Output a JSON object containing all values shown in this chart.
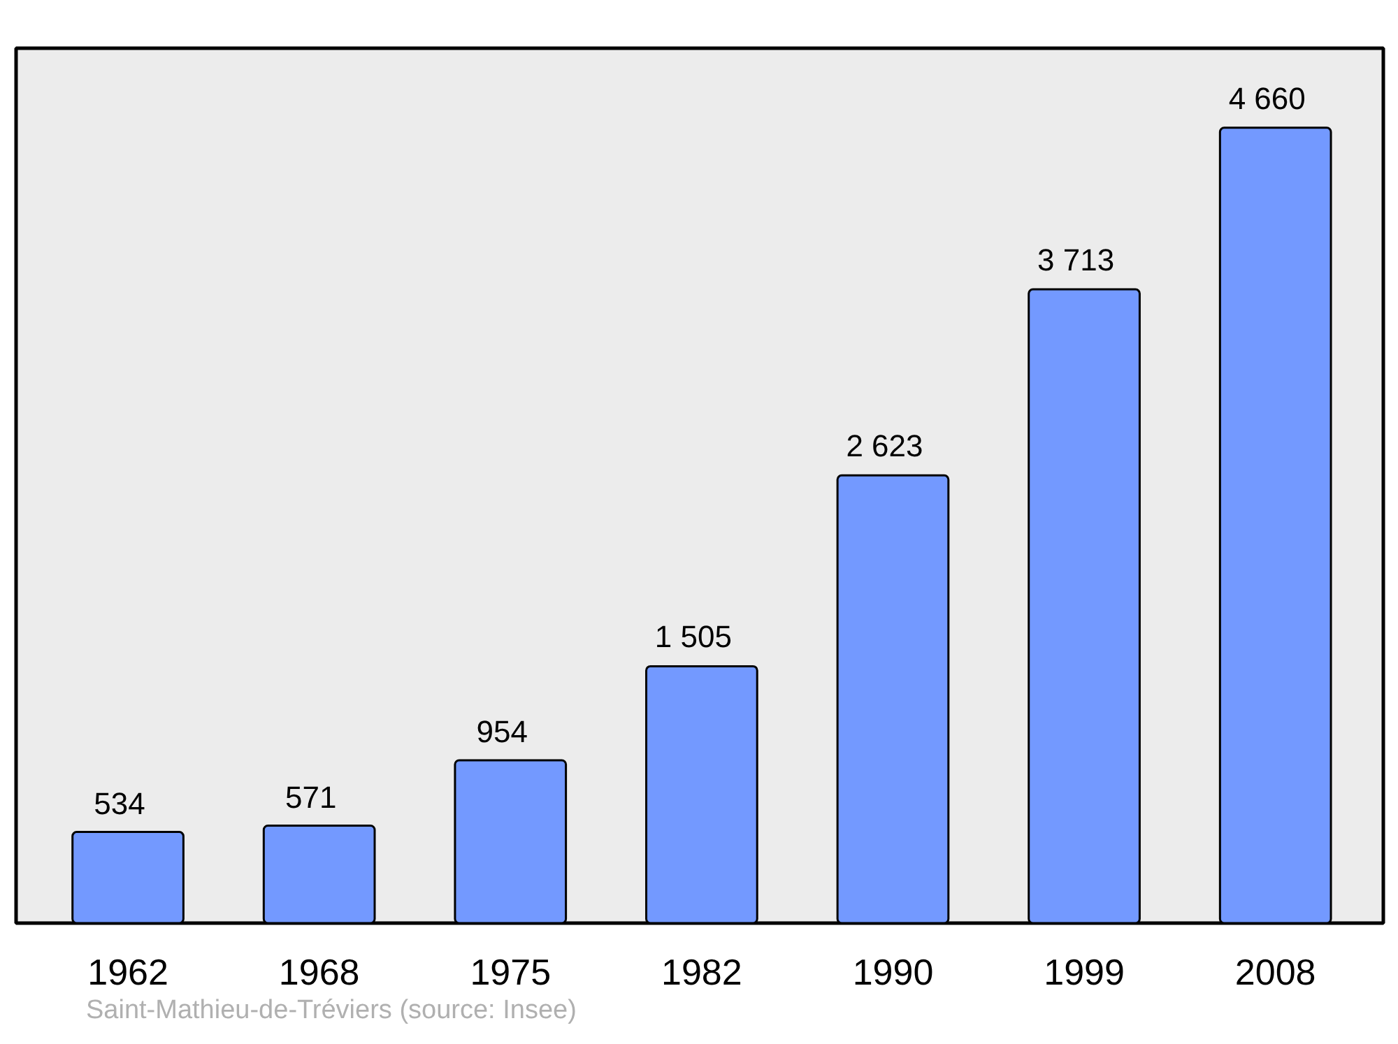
{
  "chart_data": {
    "type": "bar",
    "categories": [
      "1962",
      "1968",
      "1975",
      "1982",
      "1990",
      "1999",
      "2008"
    ],
    "values": [
      534,
      571,
      954,
      1505,
      2623,
      3713,
      4660
    ],
    "color": "#7399ff",
    "value_labels": [
      "534",
      "571",
      "954",
      "1 505",
      "2 623",
      "3 713",
      "4 660"
    ],
    "annotations": [
      "Saint-Mathieu-de-Tréviers    (source: Insee)"
    ]
  }
}
